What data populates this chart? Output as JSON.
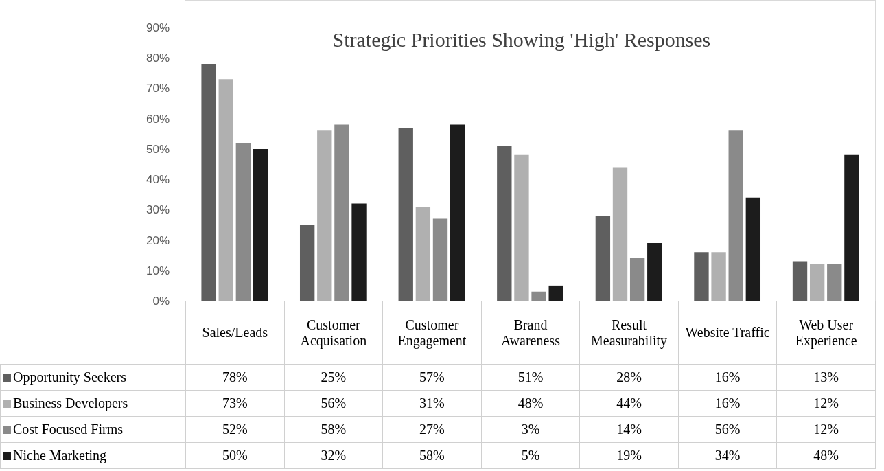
{
  "chart_data": {
    "type": "bar",
    "title": "Strategic Priorities Showing 'High' Responses",
    "categories": [
      "Sales/Leads",
      "Customer Acquisation",
      "Customer Engagement",
      "Brand Awareness",
      "Result Measurability",
      "Website Traffic",
      "Web User Experience"
    ],
    "series": [
      {
        "name": "Opportunity Seekers",
        "color": "#5f5f5f",
        "values": [
          78,
          25,
          57,
          51,
          28,
          16,
          13
        ],
        "value_labels": [
          "78%",
          "25%",
          "57%",
          "51%",
          "28%",
          "16%",
          "13%"
        ]
      },
      {
        "name": "Business Developers",
        "color": "#b0b0b0",
        "values": [
          73,
          56,
          31,
          48,
          44,
          16,
          12
        ],
        "value_labels": [
          "73%",
          "56%",
          "31%",
          "48%",
          "44%",
          "16%",
          "12%"
        ]
      },
      {
        "name": "Cost Focused Firms",
        "color": "#8a8a8a",
        "values": [
          52,
          58,
          27,
          3,
          14,
          56,
          12
        ],
        "value_labels": [
          "52%",
          "58%",
          "27%",
          "3%",
          "14%",
          "56%",
          "12%"
        ]
      },
      {
        "name": "Niche Marketing",
        "color": "#1c1c1c",
        "values": [
          50,
          32,
          58,
          5,
          19,
          34,
          48
        ],
        "value_labels": [
          "50%",
          "32%",
          "58%",
          "5%",
          "19%",
          "34%",
          "48%"
        ]
      }
    ],
    "ylim": [
      0,
      90
    ],
    "yticks": [
      {
        "value": 0,
        "label": "0%"
      },
      {
        "value": 10,
        "label": "10%"
      },
      {
        "value": 20,
        "label": "20%"
      },
      {
        "value": 30,
        "label": "30%"
      },
      {
        "value": 40,
        "label": "40%"
      },
      {
        "value": 50,
        "label": "50%"
      },
      {
        "value": 60,
        "label": "60%"
      },
      {
        "value": 70,
        "label": "70%"
      },
      {
        "value": 80,
        "label": "80%"
      },
      {
        "value": 90,
        "label": "90%"
      }
    ],
    "legend": "bottom left"
  }
}
